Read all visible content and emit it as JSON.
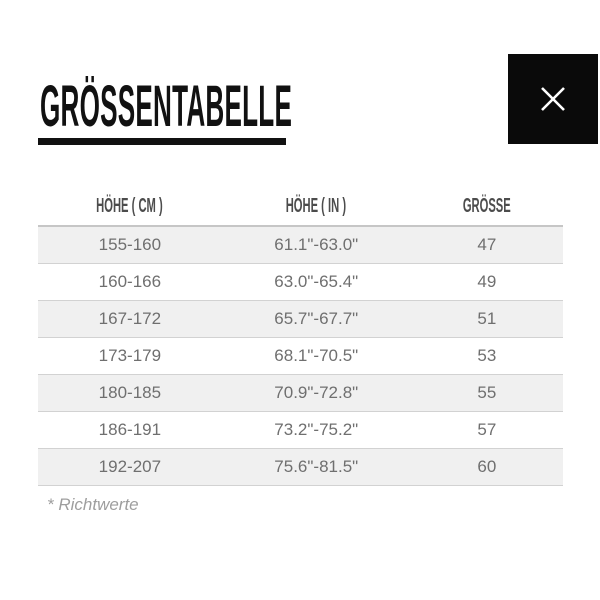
{
  "dialog": {
    "title": "GRÖSSENTABELLE",
    "footnote": "* Richtwerte"
  },
  "table": {
    "columns": [
      "HÖHE ( CM )",
      "HÖHE ( IN )",
      "GRÖSSE"
    ],
    "rows": [
      [
        "155-160",
        "61.1\"-63.0\"",
        "47"
      ],
      [
        "160-166",
        "63.0\"-65.4\"",
        "49"
      ],
      [
        "167-172",
        "65.7\"-67.7\"",
        "51"
      ],
      [
        "173-179",
        "68.1\"-70.5\"",
        "53"
      ],
      [
        "180-185",
        "70.9\"-72.8\"",
        "55"
      ],
      [
        "186-191",
        "73.2\"-75.2\"",
        "57"
      ],
      [
        "192-207",
        "75.6\"-81.5\"",
        "60"
      ]
    ]
  },
  "colors": {
    "accent_black": "#0a0a0a",
    "row_stripe": "#f0f0f0",
    "row_border": "#d2d2d2",
    "header_border": "#c6c6c6",
    "body_text": "#6f6f6f",
    "header_text": "#4c4c4c",
    "footnote_text": "#9e9e9e",
    "close_x": "#ffffff"
  }
}
